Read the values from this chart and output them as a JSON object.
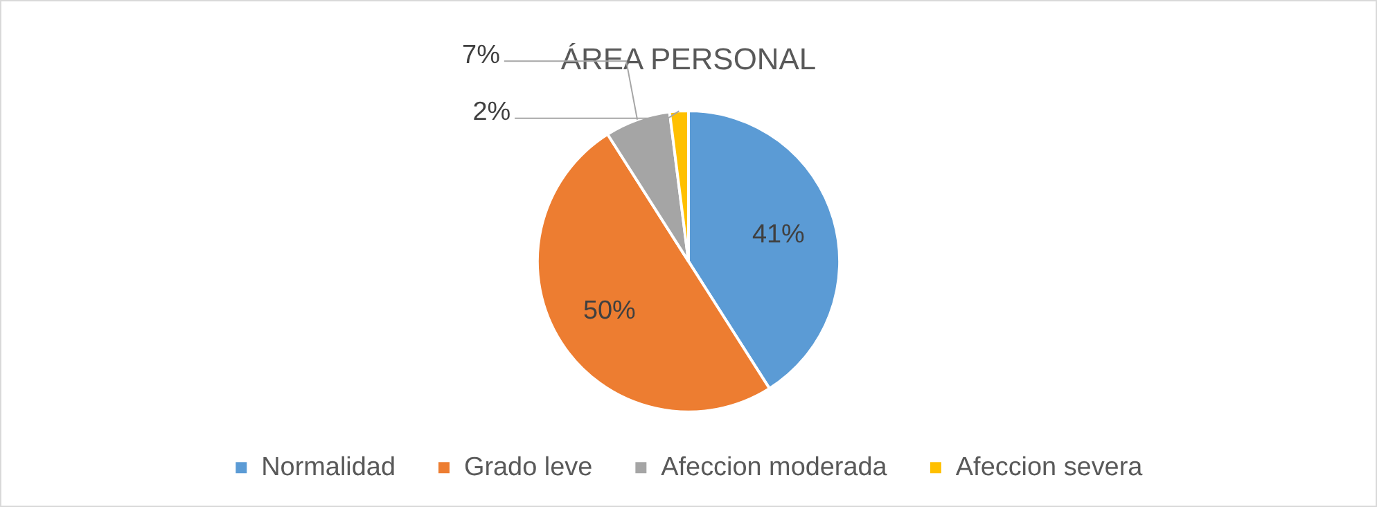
{
  "chart_data": {
    "type": "pie",
    "title": "ÁREA PERSONAL",
    "categories": [
      "Normalidad",
      "Grado leve",
      "Afeccion moderada",
      "Afeccion severa"
    ],
    "values": [
      41,
      50,
      7,
      2
    ],
    "value_labels": [
      "41%",
      "50%",
      "7%",
      "2%"
    ],
    "colors": [
      "#5b9bd5",
      "#ed7d31",
      "#a5a5a5",
      "#ffc000"
    ],
    "legend": "bottom"
  }
}
